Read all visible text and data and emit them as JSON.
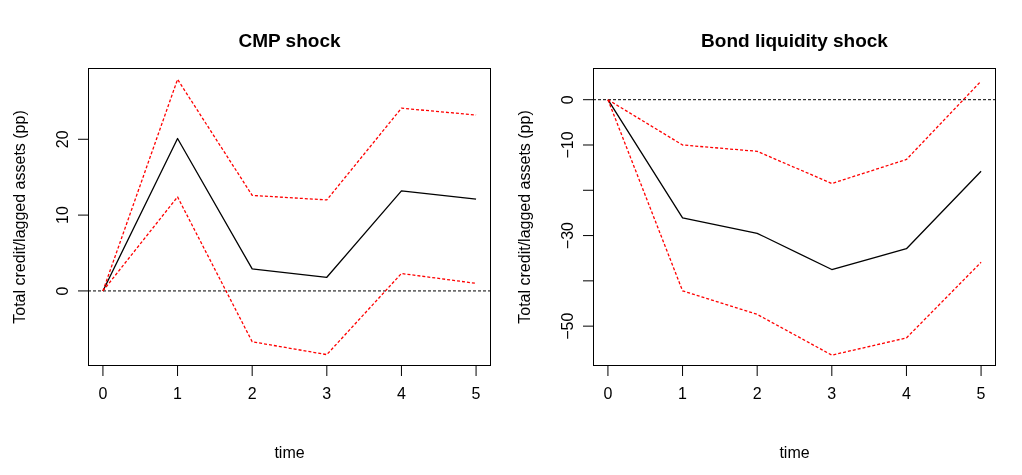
{
  "chart_data": [
    {
      "type": "line",
      "title": "CMP shock",
      "xlabel": "time",
      "ylabel": "Total credit/lagged assets (pp)",
      "x": [
        0,
        1,
        2,
        3,
        4,
        5
      ],
      "xlim": [
        -0.2,
        5.2
      ],
      "xticks": [
        0,
        1,
        2,
        3,
        4,
        5
      ],
      "ylim": [
        -9.9,
        29.4
      ],
      "yticks": [
        0,
        10,
        20
      ],
      "grid": false,
      "legend": false,
      "marker": "none",
      "series": [
        {
          "color": "#000000",
          "line_style": "solid",
          "values": [
            0,
            20.1,
            2.9,
            1.8,
            13.2,
            12.1
          ]
        },
        {
          "color": "#ff0000",
          "line_style": "dashed",
          "values": [
            0,
            27.9,
            12.6,
            12.0,
            24.1,
            23.2
          ]
        },
        {
          "color": "#ff0000",
          "line_style": "dashed",
          "values": [
            0,
            12.4,
            -6.7,
            -8.4,
            2.3,
            1.0
          ]
        }
      ],
      "ref_lines": [
        {
          "axis": "y",
          "value": 0,
          "color": "#000000",
          "line_style": "dashed"
        }
      ]
    },
    {
      "type": "line",
      "title": "Bond liquidity shock",
      "xlabel": "time",
      "ylabel": "Total credit/lagged assets (pp)",
      "x": [
        0,
        1,
        2,
        3,
        4,
        5
      ],
      "xlim": [
        -0.2,
        5.2
      ],
      "xticks": [
        0,
        1,
        2,
        3,
        4,
        5
      ],
      "ylim": [
        -58.8,
        7
      ],
      "yticks": [
        0,
        -10,
        {
          "value": -20,
          "label": null
        },
        -30,
        {
          "value": -40,
          "label": null
        },
        -50
      ],
      "grid": false,
      "legend": false,
      "marker": "none",
      "series": [
        {
          "color": "#000000",
          "line_style": "solid",
          "values": [
            0,
            -26.1,
            -29.5,
            -37.5,
            -32.9,
            -15.8
          ]
        },
        {
          "color": "#ff0000",
          "line_style": "dashed",
          "values": [
            0,
            -10.0,
            -11.4,
            -18.5,
            -13.2,
            4.1
          ]
        },
        {
          "color": "#ff0000",
          "line_style": "dashed",
          "values": [
            0,
            -42.2,
            -47.4,
            -56.4,
            -52.6,
            -35.9
          ]
        }
      ],
      "ref_lines": [
        {
          "axis": "y",
          "value": 0,
          "color": "#000000",
          "line_style": "dashed"
        }
      ]
    }
  ]
}
